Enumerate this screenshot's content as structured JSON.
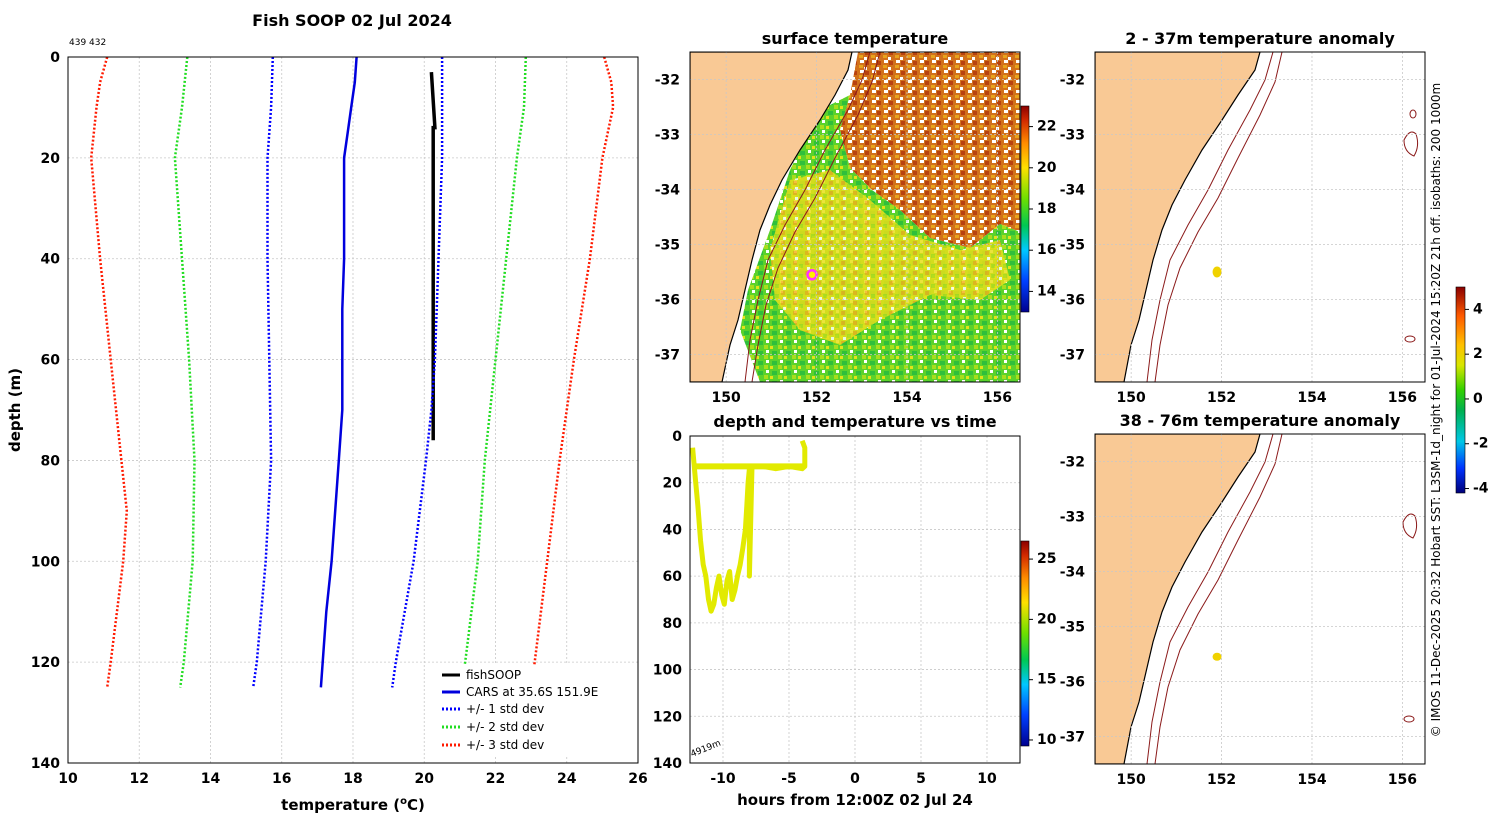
{
  "main_title": "Fish SOOP 02 Jul 2024",
  "profile_ids": "439 432",
  "credit": "© IMOS 11-Dec-2025 20:32 Hobart SST: L3SM-1d_night for 01-Jul-2024 15:20Z 21h off. isobaths: 200  1000m",
  "depth_label": "4919m",
  "colors": {
    "fishsoop": "#000000",
    "cars": "#0000dd",
    "std1": "#0000ff",
    "std2": "#22dd22",
    "std3": "#ff1a00",
    "land": "#f9c995",
    "isobath": "#8b1a1a",
    "marker": "#ff33ff"
  },
  "chart_data": [
    {
      "id": "profile",
      "type": "line",
      "title": "",
      "xlabel": "temperature (",
      "xlabel_sup": "o",
      "xlabel_end": "C)",
      "ylabel": "depth (m)",
      "xlim": [
        10,
        26
      ],
      "ylim": [
        140,
        0
      ],
      "xticks": [
        "10",
        "12",
        "14",
        "16",
        "18",
        "20",
        "22",
        "24",
        "26"
      ],
      "yticks": [
        "0",
        "20",
        "40",
        "60",
        "80",
        "100",
        "120",
        "140"
      ],
      "series": [
        {
          "name": "fishSOOP",
          "style": "solid",
          "depth": [
            3,
            14,
            14,
            76
          ],
          "temp": [
            20.2,
            20.3,
            20.25,
            20.25
          ]
        },
        {
          "name": "CARS at 35.6S 151.9E",
          "style": "solid",
          "depth": [
            0,
            5,
            10,
            15,
            20,
            30,
            40,
            50,
            60,
            70,
            80,
            90,
            100,
            110,
            120,
            125
          ],
          "temp": [
            18.1,
            18.05,
            17.95,
            17.85,
            17.75,
            17.75,
            17.75,
            17.7,
            17.7,
            17.7,
            17.6,
            17.5,
            17.4,
            17.25,
            17.15,
            17.1
          ]
        },
        {
          "name": "+/- 1 std dev",
          "style": "dotted",
          "depth": [
            0,
            10,
            20,
            40,
            60,
            80,
            100,
            120,
            125
          ],
          "temp": [
            15.75,
            15.7,
            15.6,
            15.6,
            15.65,
            15.7,
            15.55,
            15.3,
            15.2
          ]
        },
        {
          "name": "",
          "style": "dotted",
          "depth": [
            0,
            10,
            20,
            40,
            60,
            70,
            80,
            100,
            120,
            125
          ],
          "temp": [
            20.5,
            20.5,
            20.5,
            20.4,
            20.3,
            20.2,
            20.05,
            19.7,
            19.2,
            19.1
          ]
        },
        {
          "name": "+/- 2 std dev",
          "style": "dotted",
          "depth": [
            0,
            10,
            20,
            40,
            60,
            80,
            100,
            120,
            125
          ],
          "temp": [
            13.35,
            13.2,
            13.0,
            13.2,
            13.4,
            13.55,
            13.5,
            13.25,
            13.15
          ]
        },
        {
          "name": "",
          "style": "dotted",
          "depth": [
            0,
            10,
            20,
            40,
            60,
            80,
            100,
            120,
            125
          ],
          "temp": [
            22.85,
            22.8,
            22.6,
            22.3,
            22.0,
            21.7,
            21.5,
            21.15,
            21.0
          ]
        },
        {
          "name": "+/- 3 std dev",
          "style": "dotted",
          "depth": [
            0,
            5,
            10,
            20,
            40,
            60,
            80,
            90,
            100,
            120,
            125
          ],
          "temp": [
            11.1,
            10.9,
            10.8,
            10.65,
            10.9,
            11.2,
            11.5,
            11.65,
            11.55,
            11.2,
            11.1
          ]
        },
        {
          "name": "",
          "style": "dotted",
          "depth": [
            0,
            5,
            10,
            20,
            40,
            60,
            80,
            100,
            120,
            125
          ],
          "temp": [
            25.05,
            25.25,
            25.3,
            25.0,
            24.65,
            24.2,
            23.8,
            23.45,
            23.1,
            23.0
          ]
        }
      ],
      "legend": "bottom-right"
    },
    {
      "id": "sst",
      "type": "heatmap",
      "title": "surface temperature",
      "xlim": [
        149.2,
        156.5
      ],
      "ylim": [
        -37.5,
        -31.5
      ],
      "xticks": [
        "150",
        "152",
        "154",
        "156"
      ],
      "yticks": [
        "-32",
        "-33",
        "-34",
        "-35",
        "-36",
        "-37"
      ],
      "colorbar": {
        "range": [
          13,
          23
        ],
        "ticks": [
          "22",
          "20",
          "18",
          "16",
          "14"
        ]
      },
      "marker": {
        "lon": 151.9,
        "lat": -35.55
      }
    },
    {
      "id": "anom1",
      "type": "heatmap",
      "title": "2 - 37m temperature anomaly",
      "xlim": [
        149.2,
        156.5
      ],
      "ylim": [
        -37.5,
        -31.5
      ],
      "xticks": [
        "150",
        "152",
        "154",
        "156"
      ],
      "yticks": [
        "-32",
        "-33",
        "-34",
        "-35",
        "-36",
        "-37"
      ],
      "colorbar": {
        "range": [
          -4.2,
          5
        ],
        "ticks": [
          "4",
          "2",
          "0",
          "-2",
          "-4"
        ]
      },
      "marker": {
        "lon": 151.9,
        "lat": -35.5
      }
    },
    {
      "id": "anom2",
      "type": "heatmap",
      "title": "38 - 76m temperature anomaly",
      "xlim": [
        149.2,
        156.5
      ],
      "ylim": [
        -37.5,
        -31.5
      ],
      "xticks": [
        "150",
        "152",
        "154",
        "156"
      ],
      "yticks": [
        "-32",
        "-33",
        "-34",
        "-35",
        "-36",
        "-37"
      ],
      "marker": {
        "lon": 151.9,
        "lat": -35.55
      }
    },
    {
      "id": "timeseries",
      "type": "scatter",
      "title": "depth and temperature vs time",
      "xlabel": "hours from 12:00Z 02 Jul 24",
      "xlim": [
        -12.5,
        12.5
      ],
      "ylim": [
        140,
        0
      ],
      "xticks": [
        "-10",
        "-5",
        "0",
        "5",
        "10"
      ],
      "yticks": [
        "0",
        "20",
        "40",
        "60",
        "80",
        "100",
        "120",
        "140"
      ],
      "colorbar": {
        "range": [
          9.5,
          26.5
        ],
        "ticks": [
          "25",
          "20",
          "15",
          "10"
        ]
      },
      "track": {
        "hours": [
          -12.3,
          -12.1,
          -11.9,
          -11.7,
          -11.5,
          -11.3,
          -11.1,
          -10.9,
          -10.7,
          -10.5,
          -10.3,
          -10.1,
          -9.9,
          -9.7,
          -9.5,
          -9.3,
          -9.1,
          -8.9,
          -8.7,
          -8.5,
          -8.3,
          -8.2,
          -8.1,
          -8.0,
          -8.0,
          -7.8,
          -7.0,
          -6.0,
          -5.0,
          -4.0,
          -3.8,
          -3.8,
          -4.0
        ],
        "depth": [
          5,
          18,
          30,
          45,
          55,
          60,
          70,
          75,
          72,
          65,
          60,
          68,
          72,
          62,
          58,
          70,
          66,
          60,
          55,
          48,
          40,
          30,
          20,
          14,
          60,
          13,
          13,
          14,
          13,
          14,
          13,
          5,
          2
        ]
      },
      "surface_hours": [
        -12.2,
        -3.8
      ],
      "surface_depth": [
        13,
        13
      ]
    }
  ],
  "legend_items": [
    "fishSOOP",
    "CARS at 35.6S 151.9E",
    "+/- 1 std dev",
    "+/- 2 std dev",
    "+/- 3 std dev"
  ],
  "anom_gridlines": true
}
